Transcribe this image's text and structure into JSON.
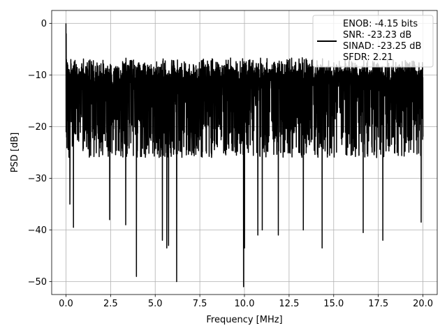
{
  "chart_data": {
    "type": "line",
    "title": "",
    "xlabel": "Frequency [MHz]",
    "ylabel": "PSD [dB]",
    "xlim": [
      -0.8,
      20.8
    ],
    "ylim": [
      -52.5,
      2.5
    ],
    "x_ticks": [
      "0.0",
      "2.5",
      "5.0",
      "7.5",
      "10.0",
      "12.5",
      "15.0",
      "17.5",
      "20.0"
    ],
    "x_tick_values": [
      0,
      2.5,
      5,
      7.5,
      10,
      12.5,
      15,
      17.5,
      20
    ],
    "y_ticks": [
      "0",
      "−10",
      "−20",
      "−30",
      "−40",
      "−50"
    ],
    "y_tick_values": [
      0,
      -10,
      -20,
      -30,
      -40,
      -50
    ],
    "grid": true,
    "legend_position": "top-right",
    "line_color": "#000000",
    "series": [
      {
        "legend_lines": [
          "ENOB: -4.15 bits",
          "SNR: -23.23 dB",
          "SINAD: -23.25 dB",
          "SFDR: 2.21"
        ],
        "x_range": [
          0,
          20
        ],
        "peak": {
          "x": 0.0,
          "y": 0.0
        },
        "typical_band": [
          -26,
          -9
        ],
        "notable_dips": [
          {
            "x": 0.22,
            "y": -35
          },
          {
            "x": 0.42,
            "y": -39.5
          },
          {
            "x": 2.45,
            "y": -38
          },
          {
            "x": 3.35,
            "y": -39
          },
          {
            "x": 3.95,
            "y": -49
          },
          {
            "x": 5.4,
            "y": -42
          },
          {
            "x": 5.65,
            "y": -43.5
          },
          {
            "x": 5.75,
            "y": -43
          },
          {
            "x": 6.2,
            "y": -50
          },
          {
            "x": 9.95,
            "y": -51
          },
          {
            "x": 10.0,
            "y": -43.5
          },
          {
            "x": 10.75,
            "y": -41
          },
          {
            "x": 11.0,
            "y": -40
          },
          {
            "x": 11.9,
            "y": -41
          },
          {
            "x": 13.3,
            "y": -40
          },
          {
            "x": 14.35,
            "y": -43.5
          },
          {
            "x": 16.65,
            "y": -40.5
          },
          {
            "x": 17.75,
            "y": -42
          },
          {
            "x": 19.9,
            "y": -38.5
          }
        ]
      }
    ]
  }
}
